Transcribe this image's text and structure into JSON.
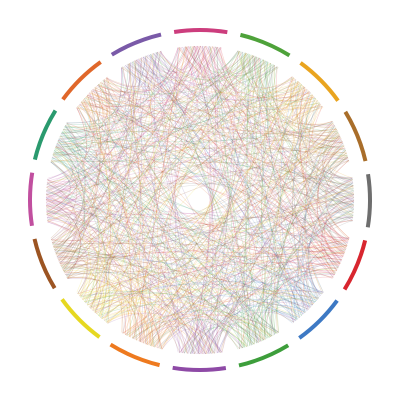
{
  "diagram": {
    "type": "chord",
    "segments": [
      {
        "color": "#c14f9f"
      },
      {
        "color": "#2a9a6e"
      },
      {
        "color": "#e0672a"
      },
      {
        "color": "#7a5aa8"
      },
      {
        "color": "#cc3d7d"
      },
      {
        "color": "#4ea23a"
      },
      {
        "color": "#e9a41f"
      },
      {
        "color": "#a96e2a"
      },
      {
        "color": "#6e6e6e"
      },
      {
        "color": "#d8262f"
      },
      {
        "color": "#3d79c4"
      },
      {
        "color": "#3d9e3b"
      },
      {
        "color": "#8e4aa6"
      },
      {
        "color": "#ee7a1f"
      },
      {
        "color": "#e6d821"
      },
      {
        "color": "#9c5422"
      }
    ],
    "connections_per_pair": 3
  }
}
